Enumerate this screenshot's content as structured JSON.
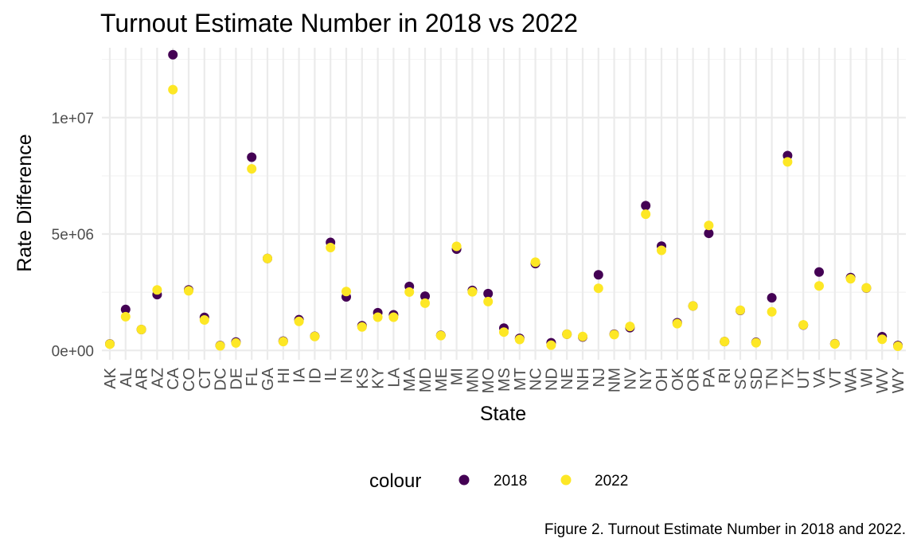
{
  "chart_data": {
    "type": "scatter",
    "title": "Turnout Estimate Number in 2018 vs 2022",
    "xlabel": "State",
    "ylabel": "Rate Difference",
    "caption": "Figure 2. Turnout Estimate Number in 2018 and 2022.",
    "legend_title": "colour",
    "legend_position": "bottom",
    "grid": true,
    "ylim": [
      -400000,
      13000000
    ],
    "yticks": [
      0,
      5000000,
      10000000
    ],
    "ytick_labels": [
      "0e+00",
      "5e+06",
      "1e+07"
    ],
    "categories": [
      "AK",
      "AL",
      "AR",
      "AZ",
      "CA",
      "CO",
      "CT",
      "DC",
      "DE",
      "FL",
      "GA",
      "HI",
      "IA",
      "ID",
      "IL",
      "IN",
      "KS",
      "KY",
      "LA",
      "MA",
      "MD",
      "ME",
      "MI",
      "MN",
      "MO",
      "MS",
      "MT",
      "NC",
      "ND",
      "NE",
      "NH",
      "NJ",
      "NM",
      "NV",
      "NY",
      "OH",
      "OK",
      "OR",
      "PA",
      "RI",
      "SC",
      "SD",
      "TN",
      "TX",
      "UT",
      "VA",
      "VT",
      "WA",
      "WI",
      "WV",
      "WY"
    ],
    "series": [
      {
        "name": "2018",
        "color": "#440154",
        "values": [
          280000,
          1760000,
          900000,
          2400000,
          12700000,
          2600000,
          1420000,
          210000,
          360000,
          8300000,
          3950000,
          400000,
          1320000,
          610000,
          4640000,
          2300000,
          1060000,
          1620000,
          1530000,
          2750000,
          2330000,
          650000,
          4350000,
          2580000,
          2440000,
          960000,
          520000,
          3730000,
          330000,
          700000,
          580000,
          3250000,
          700000,
          980000,
          6220000,
          4480000,
          1190000,
          1910000,
          5030000,
          380000,
          1720000,
          350000,
          2260000,
          8370000,
          1090000,
          3370000,
          290000,
          3130000,
          2680000,
          590000,
          210000
        ]
      },
      {
        "name": "2022",
        "color": "#fde725",
        "values": [
          270000,
          1450000,
          900000,
          2600000,
          11200000,
          2560000,
          1310000,
          200000,
          320000,
          7800000,
          3950000,
          380000,
          1250000,
          600000,
          4420000,
          2530000,
          1010000,
          1430000,
          1430000,
          2510000,
          2030000,
          640000,
          4470000,
          2520000,
          2100000,
          790000,
          470000,
          3790000,
          230000,
          700000,
          600000,
          2670000,
          680000,
          1030000,
          5850000,
          4300000,
          1150000,
          1910000,
          5370000,
          380000,
          1730000,
          330000,
          1660000,
          8100000,
          1100000,
          2770000,
          280000,
          3080000,
          2690000,
          480000,
          180000
        ]
      }
    ]
  }
}
